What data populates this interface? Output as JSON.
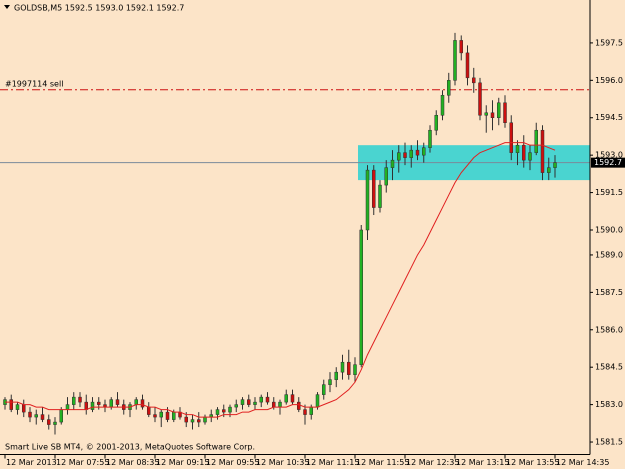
{
  "chart_data": {
    "type": "candlestick",
    "header": "GOLDSB,M5  1592.5 1593.0 1592.1 1592.7",
    "footer": "Smart Live SB MT4, © 2001-2013, MetaQuotes Software Corp.",
    "categories": [
      "12 Mar 2013",
      null,
      null,
      null,
      null,
      null,
      null,
      null,
      "12 Mar 07:55",
      null,
      null,
      null,
      null,
      null,
      null,
      null,
      "12 Mar 08:35",
      null,
      null,
      null,
      null,
      null,
      null,
      null,
      "12 Mar 09:15",
      null,
      null,
      null,
      null,
      null,
      null,
      null,
      "12 Mar 09:55",
      null,
      null,
      null,
      null,
      null,
      null,
      null,
      "12 Mar 10:35",
      null,
      null,
      null,
      null,
      null,
      null,
      null,
      "12 Mar 11:15",
      null,
      null,
      null,
      null,
      null,
      null,
      null,
      "12 Mar 11:55",
      null,
      null,
      null,
      null,
      null,
      null,
      null,
      "12 Mar 12:35",
      null,
      null,
      null,
      null,
      null,
      null,
      null,
      "12 Mar 13:15",
      null,
      null,
      null,
      null,
      null,
      null,
      null,
      "12 Mar 13:55",
      null,
      null,
      null,
      null,
      null,
      null,
      null,
      "12 Mar 14:35"
    ],
    "open": [
      1583.0,
      1583.2,
      1582.8,
      1583.0,
      1582.7,
      1582.5,
      1582.6,
      1582.4,
      1582.2,
      1582.3,
      1582.8,
      1583.0,
      1583.3,
      1583.1,
      1582.8,
      1583.1,
      1583.0,
      1582.9,
      1583.2,
      1583.0,
      1582.8,
      1583.0,
      1583.2,
      1582.9,
      1582.6,
      1582.5,
      1582.7,
      1582.4,
      1582.7,
      1582.5,
      1582.3,
      1582.4,
      1582.3,
      1582.5,
      1582.6,
      1582.8,
      1582.7,
      1582.9,
      1583.0,
      1583.2,
      1583.0,
      1583.1,
      1583.3,
      1583.1,
      1582.9,
      1583.1,
      1583.4,
      1583.1,
      1582.8,
      1582.6,
      1582.9,
      1583.4,
      1583.8,
      1584.0,
      1584.3,
      1584.7,
      1584.2,
      1584.6,
      1590.0,
      1592.4,
      1590.9,
      1591.8,
      1592.5,
      1592.8,
      1593.1,
      1592.9,
      1593.2,
      1593.0,
      1593.3,
      1594.0,
      1594.6,
      1595.4,
      1596.0,
      1597.6,
      1597.1,
      1596.1,
      1595.9,
      1594.6,
      1594.7,
      1594.5,
      1595.1,
      1594.3,
      1593.1,
      1593.4,
      1592.8,
      1593.1,
      1594.0,
      1592.3,
      1592.5
    ],
    "high": [
      1583.3,
      1583.4,
      1583.1,
      1583.2,
      1582.9,
      1582.8,
      1582.9,
      1582.6,
      1582.5,
      1582.9,
      1583.3,
      1583.5,
      1583.5,
      1583.4,
      1583.3,
      1583.3,
      1583.2,
      1583.3,
      1583.5,
      1583.2,
      1583.1,
      1583.3,
      1583.4,
      1583.1,
      1582.9,
      1582.8,
      1582.9,
      1582.8,
      1582.9,
      1582.7,
      1582.6,
      1582.7,
      1582.6,
      1582.8,
      1582.9,
      1583.0,
      1583.0,
      1583.2,
      1583.3,
      1583.4,
      1583.3,
      1583.4,
      1583.5,
      1583.3,
      1583.2,
      1583.6,
      1583.6,
      1583.3,
      1583.0,
      1583.0,
      1583.5,
      1584.0,
      1584.3,
      1584.5,
      1585.0,
      1585.2,
      1584.9,
      1590.2,
      1592.6,
      1592.6,
      1592.0,
      1592.8,
      1593.2,
      1593.4,
      1593.5,
      1593.4,
      1593.6,
      1593.5,
      1594.2,
      1594.8,
      1595.6,
      1596.3,
      1597.9,
      1597.8,
      1597.4,
      1596.5,
      1596.1,
      1595.0,
      1595.2,
      1595.3,
      1595.4,
      1594.6,
      1593.6,
      1593.8,
      1593.4,
      1594.3,
      1594.2,
      1592.9,
      1593.0
    ],
    "low": [
      1582.8,
      1582.7,
      1582.6,
      1582.5,
      1582.3,
      1582.2,
      1582.3,
      1582.0,
      1581.8,
      1582.2,
      1582.6,
      1582.8,
      1582.9,
      1582.6,
      1582.7,
      1582.8,
      1582.7,
      1582.8,
      1582.9,
      1582.6,
      1582.5,
      1582.8,
      1582.8,
      1582.5,
      1582.3,
      1582.1,
      1582.3,
      1582.3,
      1582.4,
      1582.1,
      1582.0,
      1582.1,
      1582.2,
      1582.3,
      1582.4,
      1582.5,
      1582.5,
      1582.7,
      1582.8,
      1582.9,
      1582.8,
      1582.9,
      1583.0,
      1582.8,
      1582.6,
      1583.0,
      1583.0,
      1582.7,
      1582.2,
      1582.4,
      1582.8,
      1583.2,
      1583.5,
      1583.7,
      1584.0,
      1584.0,
      1583.9,
      1584.5,
      1589.6,
      1590.6,
      1590.7,
      1591.5,
      1592.0,
      1592.3,
      1592.6,
      1592.5,
      1592.8,
      1592.7,
      1593.1,
      1593.8,
      1594.4,
      1595.1,
      1595.8,
      1596.8,
      1595.8,
      1595.5,
      1594.4,
      1593.9,
      1594.0,
      1594.2,
      1594.1,
      1592.8,
      1592.6,
      1592.5,
      1592.4,
      1593.0,
      1592.0,
      1592.0,
      1592.1
    ],
    "close": [
      1583.2,
      1582.8,
      1583.0,
      1582.7,
      1582.5,
      1582.6,
      1582.4,
      1582.2,
      1582.3,
      1582.8,
      1583.0,
      1583.3,
      1583.1,
      1582.8,
      1583.1,
      1583.0,
      1582.9,
      1583.2,
      1583.0,
      1582.8,
      1583.0,
      1583.2,
      1582.9,
      1582.6,
      1582.5,
      1582.7,
      1582.4,
      1582.7,
      1582.5,
      1582.3,
      1582.4,
      1582.3,
      1582.5,
      1582.6,
      1582.8,
      1582.7,
      1582.9,
      1583.0,
      1583.2,
      1583.0,
      1583.1,
      1583.3,
      1583.1,
      1582.9,
      1583.1,
      1583.4,
      1583.1,
      1582.8,
      1582.6,
      1582.9,
      1583.4,
      1583.8,
      1584.0,
      1584.3,
      1584.7,
      1584.2,
      1584.6,
      1590.0,
      1592.4,
      1590.9,
      1591.8,
      1592.5,
      1592.8,
      1593.1,
      1592.9,
      1593.2,
      1593.0,
      1593.3,
      1594.0,
      1594.6,
      1595.4,
      1596.0,
      1597.6,
      1597.1,
      1596.1,
      1595.9,
      1594.6,
      1594.7,
      1594.5,
      1595.1,
      1594.3,
      1593.1,
      1593.4,
      1592.8,
      1593.1,
      1594.0,
      1592.3,
      1592.5,
      1592.7
    ],
    "ma": [
      1583.1,
      1583.1,
      1583.1,
      1583.0,
      1583.0,
      1582.9,
      1582.9,
      1582.8,
      1582.8,
      1582.8,
      1582.8,
      1582.8,
      1582.8,
      1582.8,
      1582.9,
      1582.9,
      1582.9,
      1582.9,
      1582.9,
      1582.9,
      1582.9,
      1583.0,
      1583.0,
      1582.9,
      1582.9,
      1582.8,
      1582.8,
      1582.7,
      1582.7,
      1582.6,
      1582.6,
      1582.5,
      1582.5,
      1582.5,
      1582.5,
      1582.6,
      1582.6,
      1582.6,
      1582.7,
      1582.7,
      1582.8,
      1582.8,
      1582.8,
      1582.9,
      1582.9,
      1582.9,
      1583.0,
      1583.0,
      1582.9,
      1582.9,
      1582.9,
      1583.0,
      1583.1,
      1583.2,
      1583.4,
      1583.6,
      1583.9,
      1584.4,
      1585.0,
      1585.5,
      1586.0,
      1586.5,
      1587.0,
      1587.5,
      1588.0,
      1588.5,
      1589.0,
      1589.4,
      1589.9,
      1590.4,
      1590.9,
      1591.4,
      1591.9,
      1592.3,
      1592.6,
      1592.9,
      1593.1,
      1593.2,
      1593.3,
      1593.4,
      1593.5,
      1593.5,
      1593.5,
      1593.5,
      1593.4,
      1593.4,
      1593.4,
      1593.3,
      1593.2
    ],
    "up_color": "#22b022",
    "down_color": "#cc1010",
    "ma_color": "#e02020",
    "ylim": [
      1581.0,
      1599.2
    ],
    "yticks": [
      {
        "value": 1581.5,
        "label": "1581.5"
      },
      {
        "value": 1583,
        "label": "1583.0"
      },
      {
        "value": 1584.5,
        "label": "1584.5"
      },
      {
        "value": 1586,
        "label": "1586.0"
      },
      {
        "value": 1587.5,
        "label": "1587.5"
      },
      {
        "value": 1589,
        "label": "1589.0"
      },
      {
        "value": 1590,
        "label": "1590.0"
      },
      {
        "value": 1591.5,
        "label": "1591.5"
      },
      {
        "value": 1593,
        "label": "1593.0"
      },
      {
        "value": 1594.5,
        "label": "1594.5"
      },
      {
        "value": 1596,
        "label": "1596.0"
      },
      {
        "value": 1597.5,
        "label": "1597.5"
      }
    ],
    "bid": 1592.7,
    "order": {
      "label": "#1997114 sell",
      "value": 1595.62
    },
    "zone": {
      "from": 56,
      "high": 1593.4,
      "low": 1592.0,
      "color": "#4ad4d0"
    }
  }
}
